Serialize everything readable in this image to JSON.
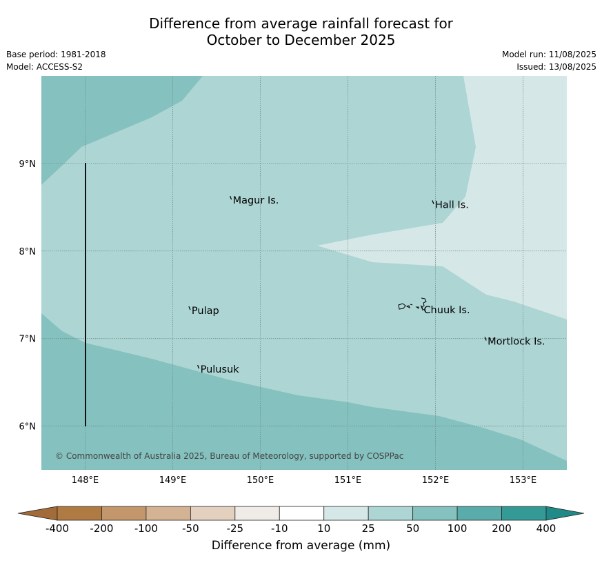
{
  "title": {
    "line1": "Difference from average rainfall forecast for",
    "line2": "October to December 2025"
  },
  "meta": {
    "base_period": "Base period: 1981-2018",
    "model": "Model: ACCESS-S2",
    "model_run": "Model run: 11/08/2025",
    "issued": "Issued: 13/08/2025"
  },
  "map": {
    "lon_range": [
      147.5,
      153.5
    ],
    "lat_range": [
      5.5,
      10.0
    ],
    "x_ticks": [
      "148°E",
      "149°E",
      "150°E",
      "151°E",
      "152°E",
      "153°E"
    ],
    "y_ticks": [
      "6°N",
      "7°N",
      "8°N",
      "9°N"
    ],
    "grid": true,
    "copyright": "© Commonwealth of Australia 2025, Bureau of Meteorology, supported by COSPPac",
    "places": [
      {
        "name": "Magur Is.",
        "lon": 149.67,
        "lat": 8.58
      },
      {
        "name": "Hall Is.",
        "lon": 151.98,
        "lat": 8.53
      },
      {
        "name": "Pulap",
        "lon": 149.2,
        "lat": 7.32
      },
      {
        "name": "Chuuk Is.",
        "lon": 151.85,
        "lat": 7.33
      },
      {
        "name": "Mortlock Is.",
        "lon": 152.58,
        "lat": 6.97
      },
      {
        "name": "Pulusuk",
        "lon": 149.3,
        "lat": 6.65
      }
    ]
  },
  "legend": {
    "title": "Difference from average (mm)",
    "tick_labels": [
      "-400",
      "-200",
      "-100",
      "-50",
      "-25",
      "-10",
      "10",
      "25",
      "50",
      "100",
      "200",
      "400"
    ],
    "colors": [
      "#a26b38",
      "#b07a43",
      "#c3966c",
      "#d3b393",
      "#e3d0bf",
      "#efece8",
      "#ffffff",
      "#d5e8e7",
      "#add5d4",
      "#84c1bf",
      "#5aacaa",
      "#349a96",
      "#1f8a87"
    ]
  },
  "colors": {
    "class_10_25": "#d5e8e7",
    "class_25_50": "#add5d4",
    "class_50_100": "#84c1bf"
  }
}
